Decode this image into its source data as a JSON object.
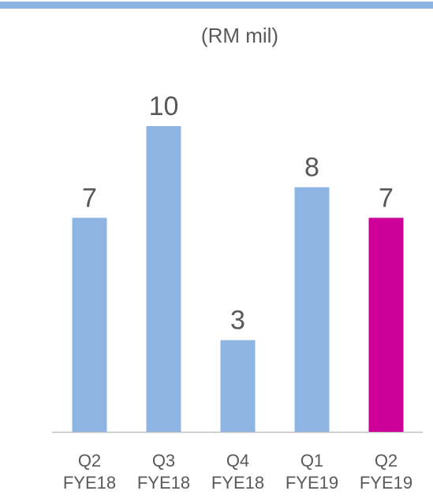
{
  "chart_data": {
    "type": "bar",
    "title": "(RM mil)",
    "categories": [
      [
        "Q2",
        "FYE18"
      ],
      [
        "Q3",
        "FYE18"
      ],
      [
        "Q4",
        "FYE18"
      ],
      [
        "Q1",
        "FYE19"
      ],
      [
        "Q2",
        "FYE19"
      ]
    ],
    "values": [
      7,
      10,
      3,
      8,
      7
    ],
    "colors": [
      "#8eb4e3",
      "#8eb4e3",
      "#8eb4e3",
      "#8eb4e3",
      "#cc0099"
    ]
  }
}
